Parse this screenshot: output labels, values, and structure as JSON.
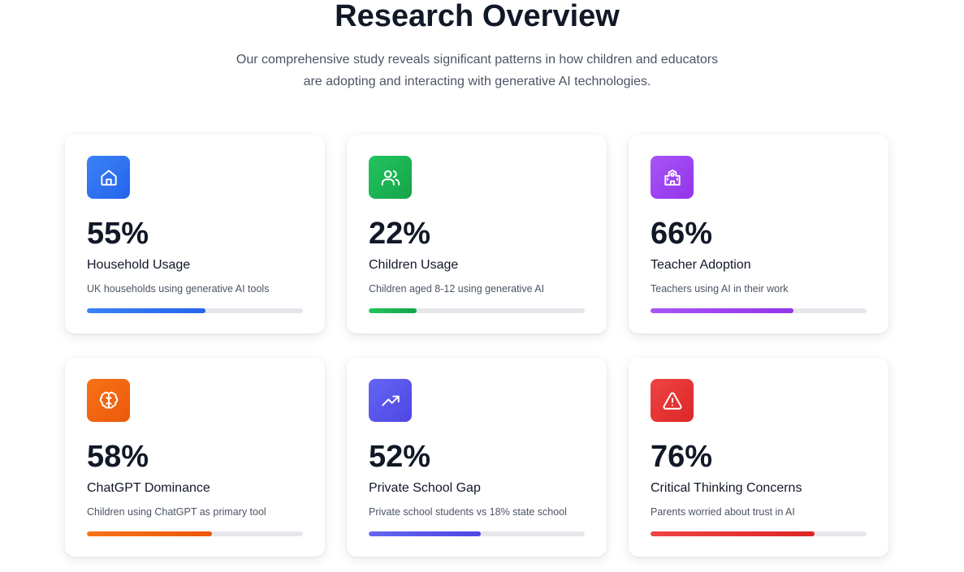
{
  "header": {
    "title": "Research Overview",
    "intro_line1": "Our comprehensive study reveals significant patterns in how children and educators",
    "intro_line2": "are adopting and interacting with generative AI technologies."
  },
  "cards": [
    {
      "icon": "home-icon",
      "value": "55%",
      "progress": 0.55,
      "label": "Household Usage",
      "description": "UK households using generative AI tools",
      "color_from": "#3b82f6",
      "color_to": "#2563eb"
    },
    {
      "icon": "users-icon",
      "value": "22%",
      "progress": 0.22,
      "label": "Children Usage",
      "description": "Children aged 8-12 using generative AI",
      "color_from": "#22c55e",
      "color_to": "#16a34a"
    },
    {
      "icon": "school-icon",
      "value": "66%",
      "progress": 0.66,
      "label": "Teacher Adoption",
      "description": "Teachers using AI in their work",
      "color_from": "#a855f7",
      "color_to": "#9333ea"
    },
    {
      "icon": "brain-icon",
      "value": "58%",
      "progress": 0.58,
      "label": "ChatGPT Dominance",
      "description": "Children using ChatGPT as primary tool",
      "color_from": "#f97316",
      "color_to": "#ea580c"
    },
    {
      "icon": "trending-up-icon",
      "value": "52%",
      "progress": 0.52,
      "label": "Private School Gap",
      "description": "Private school students vs 18% state school",
      "color_from": "#6366f1",
      "color_to": "#4f46e5"
    },
    {
      "icon": "warning-icon",
      "value": "76%",
      "progress": 0.76,
      "label": "Critical Thinking Concerns",
      "description": "Parents worried about trust in AI",
      "color_from": "#ef4444",
      "color_to": "#dc2626"
    }
  ]
}
